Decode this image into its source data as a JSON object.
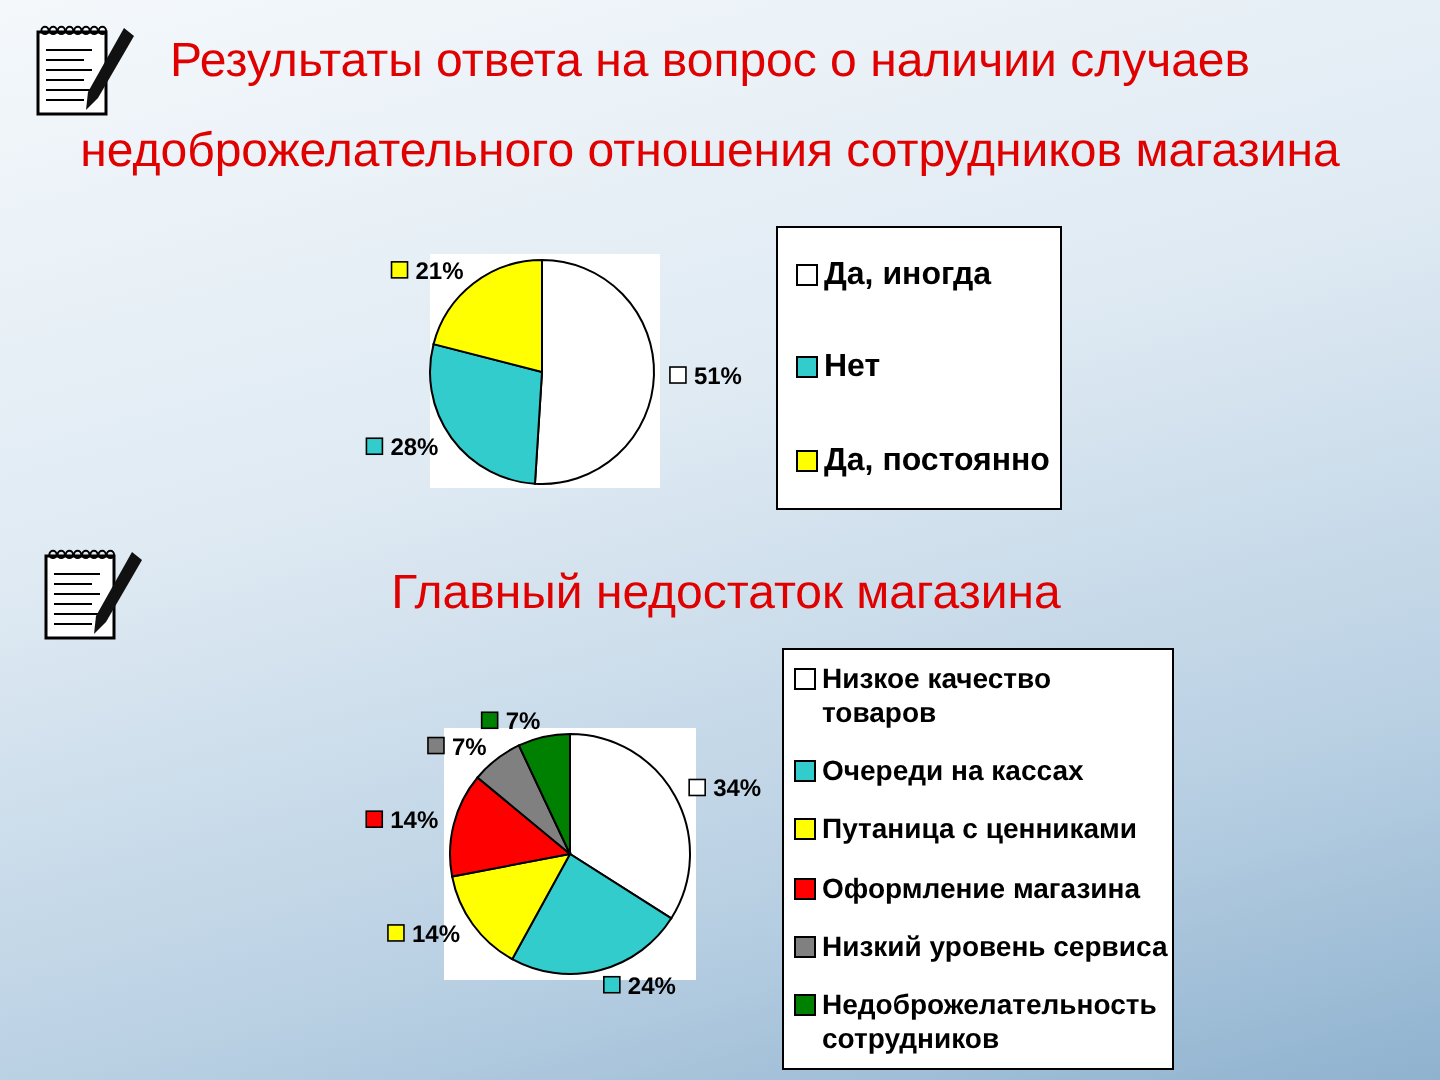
{
  "chart_data": [
    {
      "type": "pie",
      "title": "Результаты ответа на вопрос о наличии случаев недоброжелательного отношения сотрудников магазина",
      "categories": [
        "Да, иногда",
        "Нет",
        "Да, постоянно"
      ],
      "values": [
        51,
        28,
        21
      ],
      "colors": [
        "#ffffff",
        "#33cccc",
        "#ffff00"
      ],
      "value_labels": [
        "51%",
        "28%",
        "21%"
      ],
      "legend": "right"
    },
    {
      "type": "pie",
      "title": "Главный недостаток магазина",
      "categories": [
        "Низкое качество товаров",
        "Очереди на кассах",
        "Путаница с ценниками",
        "Оформление магазина",
        "Низкий уровень сервиса",
        "Недоброжелательность сотрудников"
      ],
      "values": [
        34,
        24,
        14,
        14,
        7,
        7
      ],
      "colors": [
        "#ffffff",
        "#33cccc",
        "#ffff00",
        "#ff0000",
        "#808080",
        "#008000"
      ],
      "value_labels": [
        "34%",
        "24%",
        "14%",
        "14%",
        "7%",
        "7%"
      ],
      "legend": "right"
    }
  ]
}
